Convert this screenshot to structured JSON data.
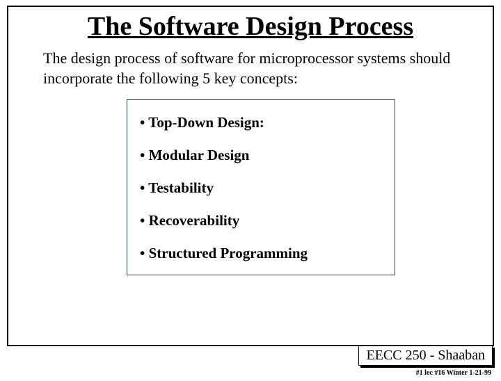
{
  "title": "The Software Design Process",
  "intro": "The design process of software for microprocessor systems should incorporate the following 5 key concepts:",
  "concepts": [
    "Top-Down Design:",
    "Modular Design",
    "Testability",
    "Recoverability",
    "Structured Programming"
  ],
  "footer": "EECC 250 - Shaaban",
  "footer_sub": "#1 lec #16 Winter 1-21-99",
  "colors": {
    "box_border": "#1a3a7a",
    "slide_border": "#000000",
    "background": "#ffffff",
    "text": "#000000"
  }
}
